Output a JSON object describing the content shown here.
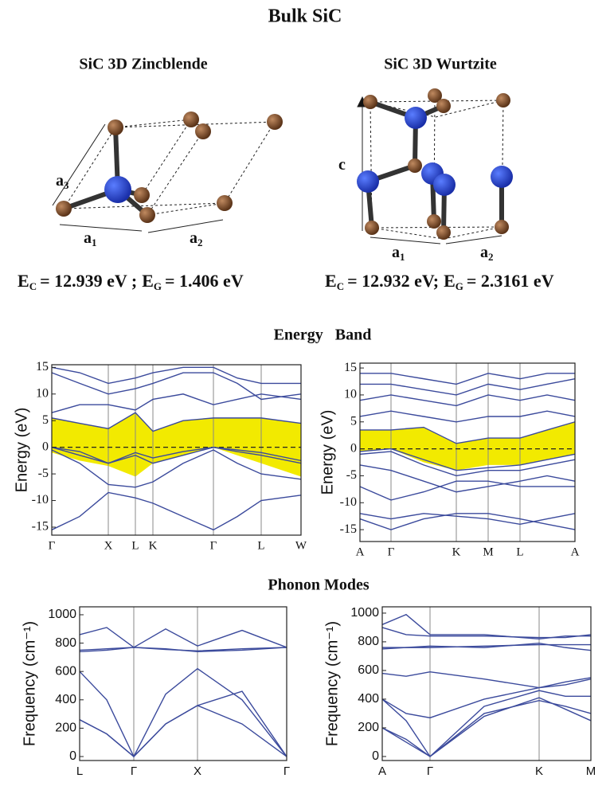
{
  "title": "Bulk SiC",
  "structures": [
    {
      "title": "SiC 3D Zincblende",
      "lattice_labels": [
        {
          "base": "a",
          "sub": "3"
        },
        {
          "base": "a",
          "sub": "1"
        },
        {
          "base": "a",
          "sub": "2"
        }
      ],
      "energy": {
        "ec_symbol": "E",
        "ec_sub": "C",
        "ec_value": "= 12.939 eV ;",
        "eg_symbol": "E",
        "eg_sub": "G",
        "eg_value": "= 1.406 eV"
      }
    },
    {
      "title": "SiC 3D Wurtzite",
      "lattice_labels": [
        {
          "base": "c",
          "sub": null
        },
        {
          "base": "a",
          "sub": "1"
        },
        {
          "base": "a",
          "sub": "2"
        }
      ],
      "energy": {
        "ec_symbol": "E",
        "ec_sub": "C",
        "ec_value": "= 12.932  eV;",
        "eg_symbol": "E",
        "eg_sub": "G",
        "eg_value": "= 2.3161 eV"
      }
    }
  ],
  "sections": [
    "Energy   Band",
    "Phonon Modes"
  ],
  "chart_data": [
    {
      "type": "line",
      "ylabel": "Energy (eV)",
      "grid": true,
      "hline": 0,
      "xlim": [
        0,
        313
      ],
      "ylim": [
        -16.5,
        15.5
      ],
      "xticks": [
        {
          "value": 0,
          "label": "Γ"
        },
        {
          "value": 71,
          "label": "X"
        },
        {
          "value": 105,
          "label": "L"
        },
        {
          "value": 127,
          "label": "K"
        },
        {
          "value": 203,
          "label": "Γ"
        },
        {
          "value": 263,
          "label": "L"
        },
        {
          "value": 313,
          "label": "W"
        }
      ],
      "yticks": [
        15,
        10,
        5,
        0,
        -5,
        -10,
        -15
      ],
      "x": [
        0,
        35,
        71,
        105,
        127,
        165,
        203,
        233,
        263,
        313
      ],
      "band_fill": {
        "color": "#f2ea00",
        "upper": [
          5.5,
          4.5,
          3.5,
          6.5,
          3,
          5,
          5.5,
          5.5,
          5.5,
          4.5
        ],
        "lower": [
          -1,
          -2.5,
          -3.5,
          -5.5,
          -3,
          -1.5,
          0,
          -1.5,
          -3,
          -5.5
        ]
      },
      "series": [
        {
          "color": "#3b4a9c",
          "values": [
            -15.5,
            -13,
            -8.5,
            -9.5,
            -10.5,
            -13,
            -15.5,
            -13,
            -10,
            -9
          ]
        },
        {
          "color": "#3b4a9c",
          "values": [
            -0.5,
            -3,
            -7,
            -7.5,
            -6.5,
            -3,
            -0.5,
            -3,
            -5,
            -6
          ]
        },
        {
          "color": "#3b4a9c",
          "values": [
            0,
            -1.5,
            -3,
            -1.5,
            -3,
            -1.5,
            0,
            -0.8,
            -1.5,
            -3
          ]
        },
        {
          "color": "#3b4a9c",
          "values": [
            0,
            -0.8,
            -3,
            -1,
            -2,
            -0.8,
            0,
            -0.5,
            -1,
            -2.5
          ]
        },
        {
          "color": "#3b4a9c",
          "values": [
            5.5,
            4.5,
            3.5,
            6.5,
            3,
            5,
            5.5,
            5.5,
            5.5,
            4.5
          ]
        },
        {
          "color": "#3b4a9c",
          "values": [
            6.5,
            8,
            8,
            7,
            9,
            10,
            8,
            9,
            10,
            9
          ]
        },
        {
          "color": "#3b4a9c",
          "values": [
            14,
            12,
            10,
            11,
            12,
            14,
            14,
            12,
            9,
            10
          ]
        },
        {
          "color": "#3b4a9c",
          "values": [
            15,
            14,
            12,
            13,
            14,
            15,
            15,
            13,
            12,
            12
          ]
        }
      ]
    },
    {
      "type": "line",
      "ylabel": "Energy (eV)",
      "grid": true,
      "hline": 0,
      "xlim": [
        0,
        270
      ],
      "ylim": [
        -17.2,
        15.9
      ],
      "xticks": [
        {
          "value": 0,
          "label": "A"
        },
        {
          "value": 39,
          "label": "Γ"
        },
        {
          "value": 121,
          "label": "K"
        },
        {
          "value": 161,
          "label": "M"
        },
        {
          "value": 201,
          "label": "L"
        },
        {
          "value": 270,
          "label": "A"
        }
      ],
      "yticks": [
        15,
        10,
        5,
        0,
        -5,
        -10,
        -15
      ],
      "x": [
        0,
        39,
        80,
        121,
        161,
        201,
        235,
        270
      ],
      "band_fill": {
        "color": "#f2ea00",
        "upper": [
          3.5,
          3.5,
          4,
          1,
          2,
          2,
          3.5,
          5
        ],
        "lower": [
          -0.5,
          0,
          -2.5,
          -4,
          -3,
          -3,
          -2,
          -1
        ]
      },
      "series": [
        {
          "color": "#3b4a9c",
          "values": [
            -0.5,
            0,
            -2,
            -4,
            -3.5,
            -3,
            -2,
            -1
          ]
        },
        {
          "color": "#3b4a9c",
          "values": [
            -1,
            -0.5,
            -3,
            -5,
            -4,
            -4,
            -3,
            -2
          ]
        },
        {
          "color": "#3b4a9c",
          "values": [
            -3,
            -4,
            -6,
            -8,
            -7,
            -6,
            -5,
            -6
          ]
        },
        {
          "color": "#3b4a9c",
          "values": [
            -7,
            -9.5,
            -8,
            -6,
            -6,
            -7,
            -7,
            -7
          ]
        },
        {
          "color": "#3b4a9c",
          "values": [
            -13,
            -15,
            -13,
            -12,
            -12,
            -13,
            -14,
            -15
          ]
        },
        {
          "color": "#3b4a9c",
          "values": [
            -12,
            -13,
            -12,
            -12.5,
            -13,
            -14,
            -13,
            -12
          ]
        },
        {
          "color": "#3b4a9c",
          "values": [
            3.5,
            3.5,
            4,
            1,
            2,
            2,
            3.5,
            5
          ]
        },
        {
          "color": "#3b4a9c",
          "values": [
            6,
            7,
            6,
            5,
            6,
            6,
            7,
            6
          ]
        },
        {
          "color": "#3b4a9c",
          "values": [
            9,
            10,
            9,
            8,
            10,
            9,
            10,
            9
          ]
        },
        {
          "color": "#3b4a9c",
          "values": [
            12,
            12,
            11,
            10,
            12,
            11,
            12,
            13
          ]
        },
        {
          "color": "#3b4a9c",
          "values": [
            14,
            14,
            13,
            12,
            14,
            13,
            14,
            14
          ]
        }
      ]
    },
    {
      "type": "line",
      "ylabel": "Frequency (cm⁻¹)",
      "grid": true,
      "xlim": [
        0,
        260
      ],
      "ylim": [
        -28,
        1056
      ],
      "xticks": [
        {
          "value": 0,
          "label": "L"
        },
        {
          "value": 68,
          "label": "Γ"
        },
        {
          "value": 148,
          "label": "X"
        },
        {
          "value": 260,
          "label": "Γ"
        }
      ],
      "yticks": [
        0,
        200,
        400,
        600,
        800,
        1000
      ],
      "x": [
        0,
        34,
        68,
        108,
        148,
        204,
        260
      ],
      "series": [
        {
          "color": "#3b4a9c",
          "values": [
            260,
            160,
            0,
            230,
            360,
            230,
            0
          ]
        },
        {
          "color": "#3b4a9c",
          "values": [
            260,
            160,
            0,
            230,
            360,
            460,
            0
          ]
        },
        {
          "color": "#3b4a9c",
          "values": [
            600,
            400,
            0,
            440,
            620,
            400,
            0
          ]
        },
        {
          "color": "#3b4a9c",
          "values": [
            740,
            750,
            770,
            760,
            740,
            750,
            770
          ]
        },
        {
          "color": "#3b4a9c",
          "values": [
            750,
            760,
            770,
            755,
            745,
            760,
            770
          ]
        },
        {
          "color": "#3b4a9c",
          "values": [
            860,
            910,
            770,
            900,
            780,
            890,
            770
          ]
        }
      ]
    },
    {
      "type": "line",
      "ylabel": "Frequency (cm⁻¹)",
      "grid": true,
      "xlim": [
        0,
        262
      ],
      "ylim": [
        -28,
        1044
      ],
      "xticks": [
        {
          "value": 0,
          "label": "A"
        },
        {
          "value": 60,
          "label": "Γ"
        },
        {
          "value": 197,
          "label": "K"
        },
        {
          "value": 262,
          "label": "M"
        }
      ],
      "yticks": [
        0,
        200,
        400,
        600,
        800,
        1000
      ],
      "x": [
        0,
        30,
        60,
        128,
        197,
        230,
        262
      ],
      "series": [
        {
          "color": "#3b4a9c",
          "values": [
            200,
            100,
            0,
            300,
            390,
            350,
            300
          ]
        },
        {
          "color": "#3b4a9c",
          "values": [
            200,
            120,
            0,
            280,
            410,
            330,
            250
          ]
        },
        {
          "color": "#3b4a9c",
          "values": [
            400,
            250,
            0,
            350,
            460,
            420,
            420
          ]
        },
        {
          "color": "#3b4a9c",
          "values": [
            400,
            300,
            270,
            400,
            480,
            520,
            550
          ]
        },
        {
          "color": "#3b4a9c",
          "values": [
            580,
            560,
            590,
            540,
            480,
            500,
            540
          ]
        },
        {
          "color": "#3b4a9c",
          "values": [
            750,
            760,
            770,
            760,
            790,
            760,
            740
          ]
        },
        {
          "color": "#3b4a9c",
          "values": [
            760,
            760,
            760,
            770,
            780,
            780,
            780
          ]
        },
        {
          "color": "#3b4a9c",
          "values": [
            920,
            990,
            850,
            850,
            820,
            840,
            840
          ]
        },
        {
          "color": "#3b4a9c",
          "values": [
            900,
            850,
            840,
            840,
            830,
            830,
            850
          ]
        }
      ]
    }
  ]
}
